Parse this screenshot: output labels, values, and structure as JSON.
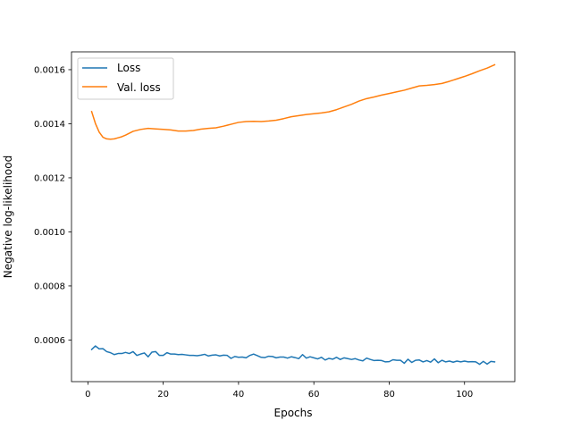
{
  "chart_data": {
    "type": "line",
    "xlabel": "Epochs",
    "ylabel": "Negative log-likelihood",
    "xlim": [
      -4.35,
      113.35
    ],
    "ylim": [
      0.000446,
      0.001666
    ],
    "xticks": [
      0,
      20,
      40,
      60,
      80,
      100
    ],
    "xtick_labels": [
      "0",
      "20",
      "40",
      "60",
      "80",
      "100"
    ],
    "yticks": [
      0.0006,
      0.0008,
      0.001,
      0.0012,
      0.0014,
      0.0016
    ],
    "ytick_labels": [
      "0.0006",
      "0.0008",
      "0.0010",
      "0.0012",
      "0.0014",
      "0.0016"
    ],
    "grid": false,
    "legend_position": "upper-left",
    "series": [
      {
        "name": "Loss",
        "color": "#1f77b4",
        "x": [
          1,
          2,
          3,
          4,
          5,
          6,
          7,
          8,
          9,
          10,
          11,
          12,
          13,
          14,
          15,
          16,
          17,
          18,
          19,
          20,
          21,
          22,
          23,
          24,
          25,
          26,
          27,
          28,
          29,
          30,
          31,
          32,
          33,
          34,
          35,
          36,
          37,
          38,
          39,
          40,
          41,
          42,
          43,
          44,
          45,
          46,
          47,
          48,
          49,
          50,
          51,
          52,
          53,
          54,
          55,
          56,
          57,
          58,
          59,
          60,
          61,
          62,
          63,
          64,
          65,
          66,
          67,
          68,
          69,
          70,
          71,
          72,
          73,
          74,
          75,
          76,
          77,
          78,
          79,
          80,
          81,
          82,
          83,
          84,
          85,
          86,
          87,
          88,
          89,
          90,
          91,
          92,
          93,
          94,
          95,
          96,
          97,
          98,
          99,
          100,
          101,
          102,
          103,
          104,
          105,
          106,
          107,
          108
        ],
        "values": [
          0.000565,
          0.000578,
          0.000567,
          0.000568,
          0.000557,
          0.000553,
          0.000546,
          0.00055,
          0.00055,
          0.000554,
          0.00055,
          0.000557,
          0.000543,
          0.000548,
          0.000552,
          0.000538,
          0.000555,
          0.000557,
          0.000543,
          0.000543,
          0.000553,
          0.000548,
          0.000548,
          0.000546,
          0.000547,
          0.000545,
          0.000543,
          0.000543,
          0.000542,
          0.000544,
          0.000547,
          0.000541,
          0.000544,
          0.000545,
          0.000541,
          0.000544,
          0.000543,
          0.000532,
          0.000539,
          0.000536,
          0.000537,
          0.000534,
          0.000543,
          0.000548,
          0.000542,
          0.000536,
          0.000535,
          0.00054,
          0.000539,
          0.000534,
          0.000537,
          0.000537,
          0.000533,
          0.000538,
          0.000535,
          0.000531,
          0.000546,
          0.000533,
          0.000538,
          0.000534,
          0.00053,
          0.000536,
          0.000526,
          0.000532,
          0.000529,
          0.000536,
          0.000528,
          0.000534,
          0.000531,
          0.000528,
          0.000531,
          0.000526,
          0.000523,
          0.000533,
          0.000528,
          0.000524,
          0.000525,
          0.000524,
          0.000519,
          0.00052,
          0.000527,
          0.000525,
          0.000525,
          0.000514,
          0.000529,
          0.000517,
          0.000525,
          0.000526,
          0.000519,
          0.000524,
          0.000518,
          0.00053,
          0.000516,
          0.000525,
          0.000519,
          0.000522,
          0.000518,
          0.000522,
          0.000519,
          0.000522,
          0.000519,
          0.00052,
          0.000519,
          0.00051,
          0.000521,
          0.000511,
          0.000521,
          0.000519
        ]
      },
      {
        "name": "Val. loss",
        "color": "#ff7f0e",
        "x": [
          1,
          2,
          3,
          4,
          5,
          6,
          7,
          8,
          9,
          10,
          12,
          14,
          16,
          18,
          20,
          22,
          24,
          26,
          28,
          30,
          32,
          34,
          36,
          38,
          40,
          42,
          44,
          46,
          48,
          50,
          52,
          54,
          56,
          58,
          60,
          62,
          64,
          66,
          68,
          70,
          72,
          74,
          76,
          78,
          80,
          82,
          84,
          86,
          88,
          90,
          92,
          94,
          96,
          98,
          100,
          102,
          104,
          106,
          108
        ],
        "values": [
          0.001445,
          0.001401,
          0.001369,
          0.00135,
          0.001344,
          0.001343,
          0.001344,
          0.001348,
          0.001352,
          0.001358,
          0.001372,
          0.001379,
          0.001383,
          0.001381,
          0.001379,
          0.001377,
          0.001373,
          0.001373,
          0.001375,
          0.00138,
          0.001383,
          0.001385,
          0.001391,
          0.001398,
          0.001405,
          0.001408,
          0.001409,
          0.001408,
          0.00141,
          0.001413,
          0.001419,
          0.001426,
          0.00143,
          0.001434,
          0.001437,
          0.00144,
          0.001444,
          0.001452,
          0.001462,
          0.001472,
          0.001484,
          0.001493,
          0.001499,
          0.001506,
          0.001512,
          0.001518,
          0.001524,
          0.001532,
          0.00154,
          0.001542,
          0.001545,
          0.001549,
          0.001557,
          0.001566,
          0.001575,
          0.001585,
          0.001596,
          0.001606,
          0.001618
        ]
      }
    ]
  }
}
